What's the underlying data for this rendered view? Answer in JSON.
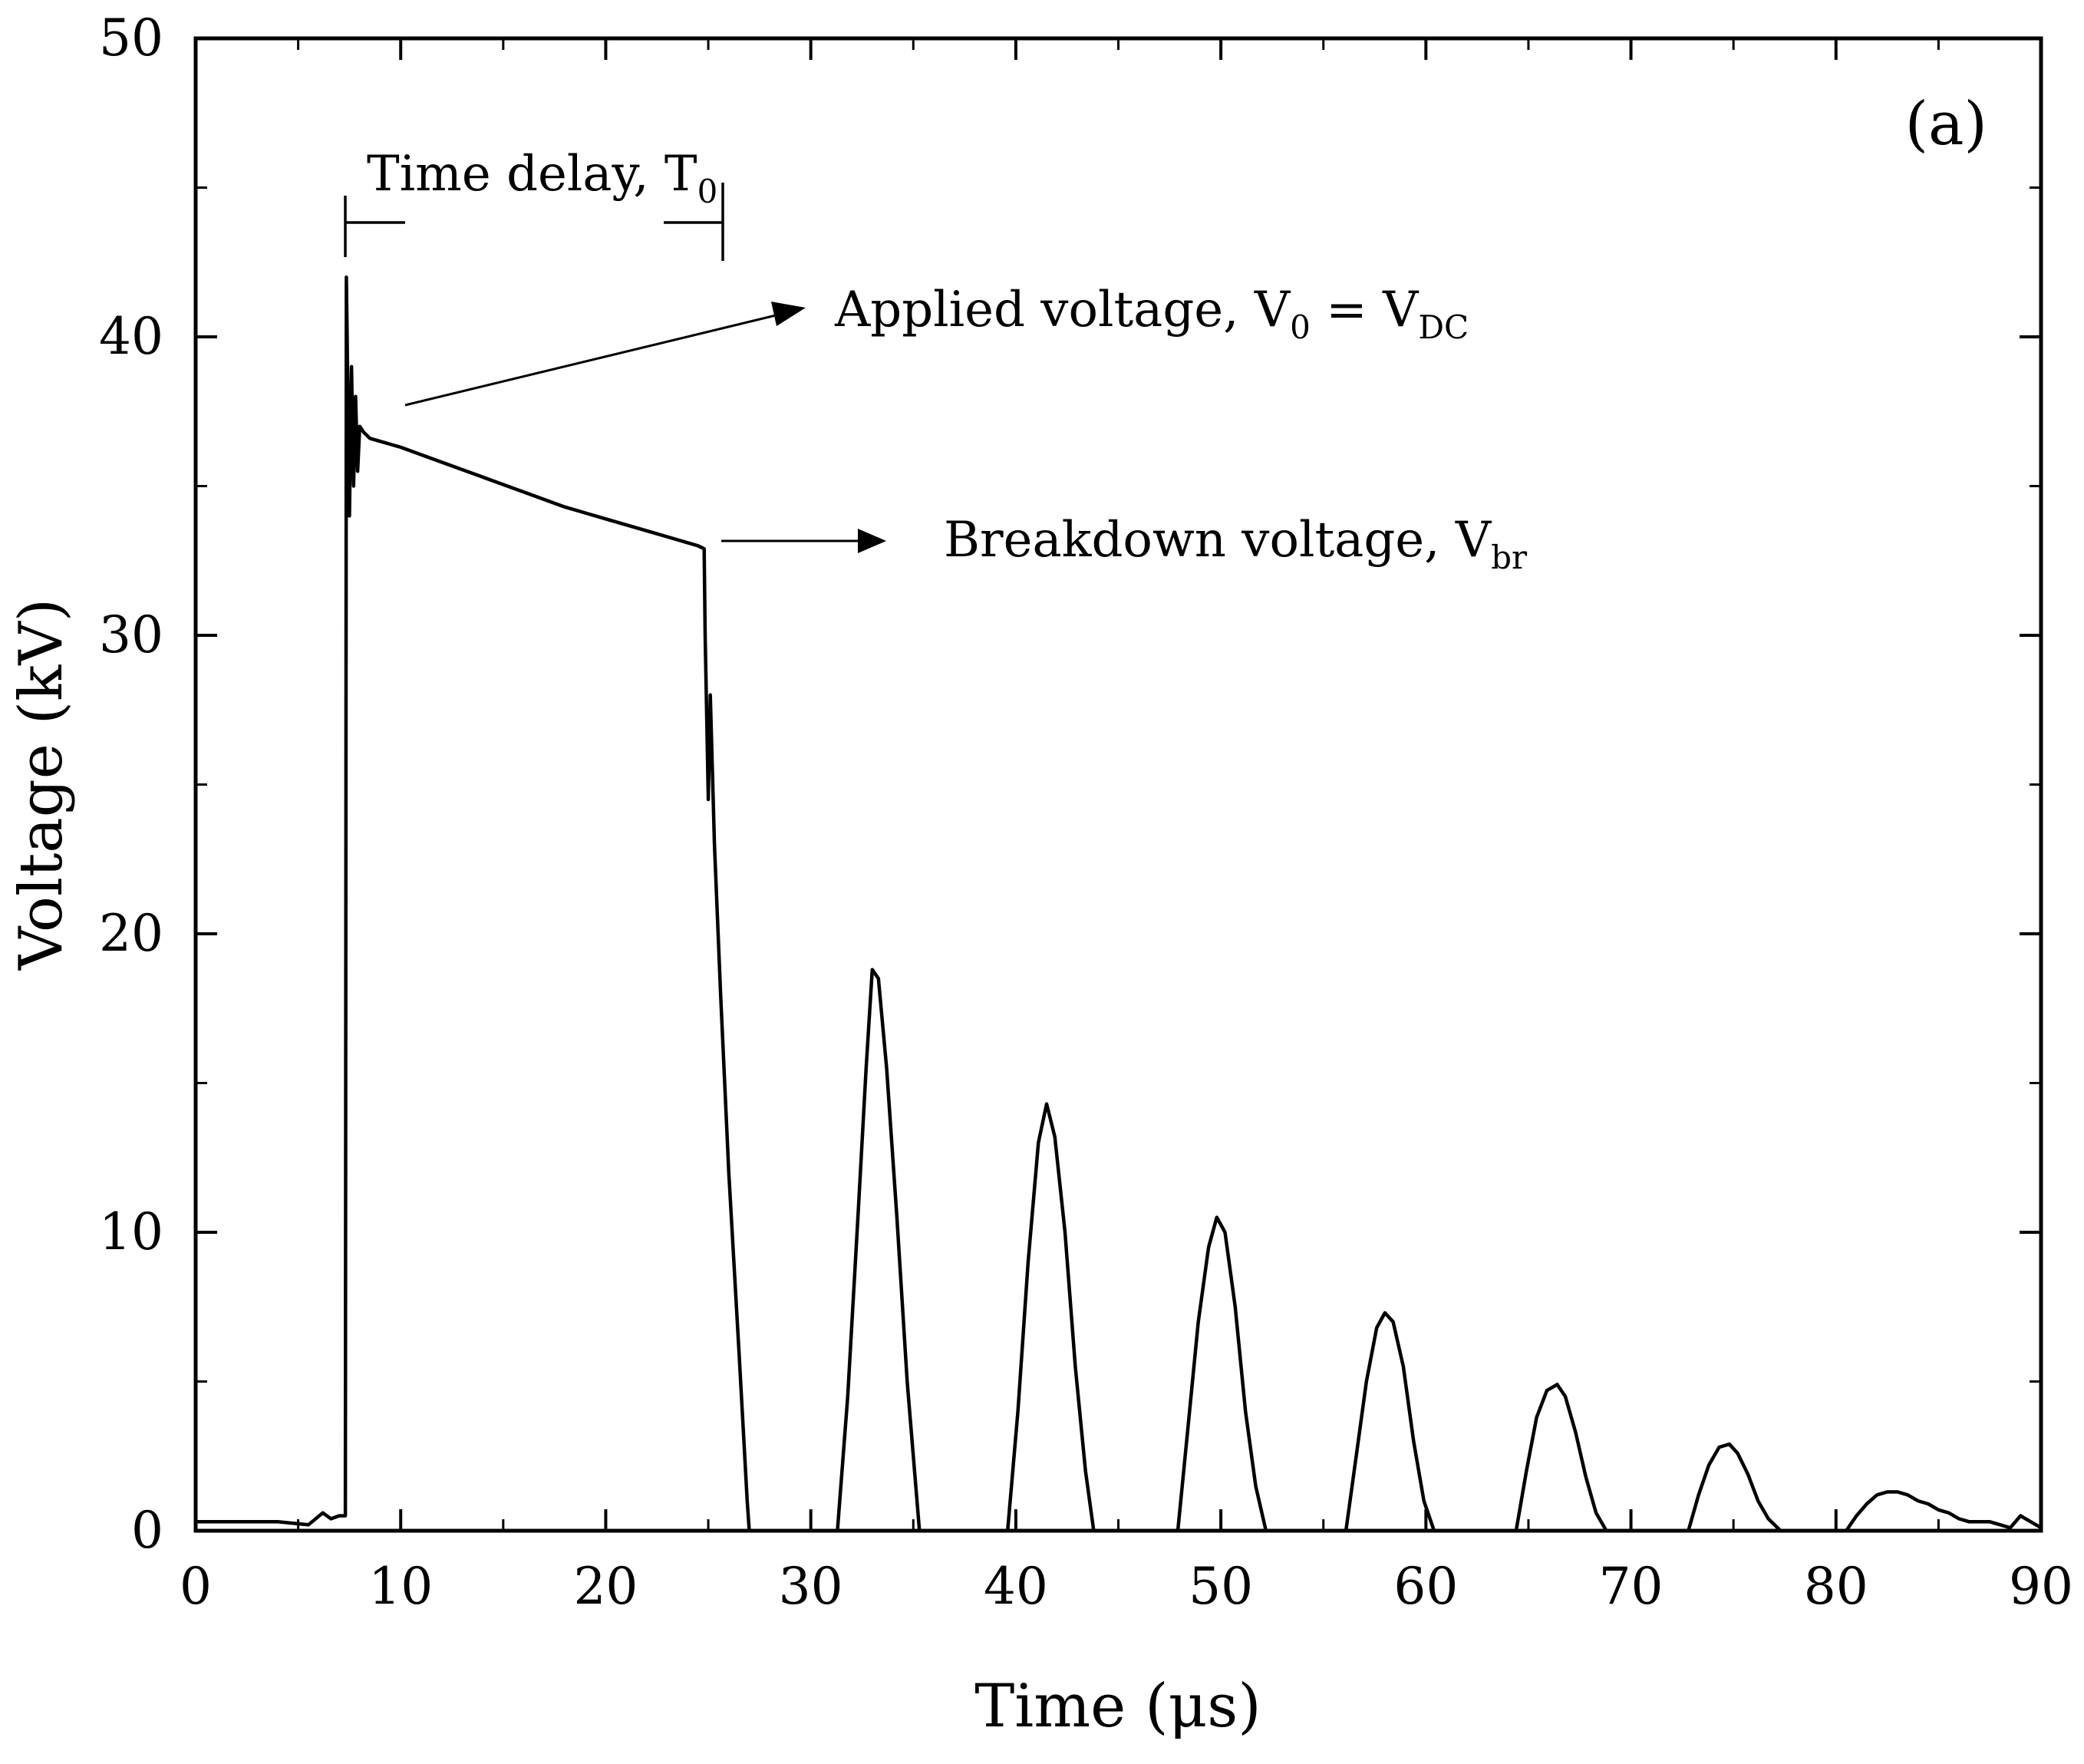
{
  "chart_data": {
    "type": "line",
    "title": "",
    "panel_label": "(a)",
    "xlabel": "Time (μs)",
    "ylabel": "Voltage (kV)",
    "xlim": [
      0,
      90
    ],
    "ylim": [
      0,
      50
    ],
    "xticks": [
      0,
      10,
      20,
      30,
      40,
      50,
      60,
      70,
      80,
      90
    ],
    "yticks": [
      0,
      10,
      20,
      30,
      40,
      50
    ],
    "grid": false,
    "annotations": {
      "time_delay": {
        "text": "Time delay, T",
        "sub": "0",
        "x_start": 7.3,
        "x_end": 25.7
      },
      "applied": {
        "text": "Applied  voltage, V",
        "sub1": "0",
        "mid": " = V",
        "sub2": "DC",
        "peak_value": 42
      },
      "breakdown": {
        "text": "Breakdown voltage, V",
        "sub": "br",
        "value": 33
      }
    },
    "series": [
      {
        "name": "Voltage",
        "x": [
          0,
          2,
          4,
          5.5,
          6.2,
          6.6,
          7.0,
          7.3,
          7.35,
          7.5,
          7.6,
          7.7,
          7.8,
          7.9,
          8.0,
          8.2,
          8.5,
          9,
          10,
          12,
          14,
          16,
          18,
          20,
          22,
          23.5,
          24.5,
          24.8,
          24.85,
          25.0,
          25.1,
          25.3,
          25.6,
          26,
          26.5,
          26.9,
          27.0,
          31.3,
          31.8,
          32.3,
          32.7,
          33.0,
          33.3,
          33.7,
          34.2,
          34.7,
          35.3,
          39.6,
          40.1,
          40.6,
          41.1,
          41.5,
          41.9,
          42.4,
          42.9,
          43.4,
          43.8,
          47.9,
          48.4,
          48.9,
          49.4,
          49.8,
          50.2,
          50.7,
          51.2,
          51.7,
          52.2,
          56.1,
          56.6,
          57.1,
          57.6,
          58.0,
          58.4,
          58.9,
          59.4,
          59.9,
          60.4,
          64.4,
          64.9,
          65.4,
          65.9,
          66.4,
          66.8,
          67.3,
          67.8,
          68.3,
          68.8,
          72.8,
          73.3,
          73.8,
          74.3,
          74.8,
          75.2,
          75.7,
          76.2,
          76.7,
          77.3,
          80.5,
          81.0,
          81.5,
          82.0,
          82.5,
          83.0,
          83.5,
          84.0,
          84.5,
          85.0,
          85.5,
          86.0,
          86.5,
          87.0,
          87.5,
          88.0,
          88.5,
          89.0,
          89.5,
          90
        ],
        "y": [
          0.3,
          0.3,
          0.3,
          0.2,
          0.6,
          0.4,
          0.5,
          0.5,
          42,
          34,
          39,
          35,
          38,
          35.5,
          37,
          36.8,
          36.6,
          36.5,
          36.3,
          35.8,
          35.3,
          34.8,
          34.3,
          33.9,
          33.5,
          33.2,
          33.0,
          32.9,
          30,
          24.5,
          28,
          23,
          18,
          12,
          6,
          1,
          0,
          0,
          4.5,
          10.5,
          15.5,
          18.8,
          18.5,
          15.5,
          10.5,
          5,
          0,
          0,
          4,
          9,
          13,
          14.3,
          13.2,
          10,
          5.5,
          2,
          0,
          0,
          3.5,
          7,
          9.5,
          10.5,
          10,
          7.5,
          4,
          1.5,
          0,
          0,
          2.5,
          5,
          6.8,
          7.3,
          7.0,
          5.5,
          3,
          1,
          0,
          0,
          2,
          3.8,
          4.7,
          4.9,
          4.5,
          3.3,
          1.8,
          0.6,
          0,
          0,
          1.2,
          2.2,
          2.8,
          2.9,
          2.6,
          1.9,
          1,
          0.4,
          0,
          0,
          0.5,
          0.9,
          1.2,
          1.3,
          1.3,
          1.2,
          1.0,
          0.9,
          0.7,
          0.6,
          0.4,
          0.3,
          0.3,
          0.3,
          0.2,
          0.1,
          0.5,
          0.3,
          0.1
        ]
      }
    ]
  }
}
